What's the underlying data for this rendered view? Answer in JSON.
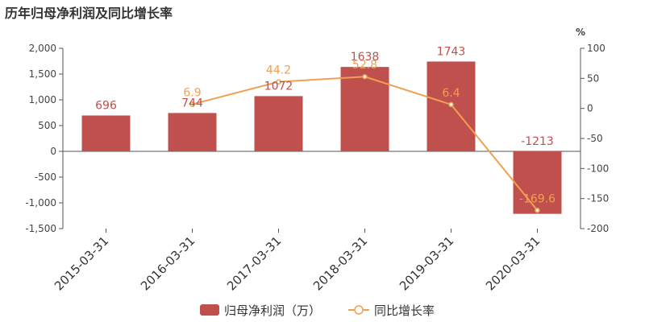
{
  "chart_data": {
    "type": "bar",
    "title": "历年归母净利润及同比增长率",
    "categories": [
      "2015-03-31",
      "2016-03-31",
      "2017-03-31",
      "2018-03-31",
      "2019-03-31",
      "2020-03-31"
    ],
    "series": [
      {
        "name": "归母净利润（万）",
        "type": "bar",
        "axis": "left",
        "values": [
          696,
          744,
          1072,
          1638,
          1743,
          -1213
        ],
        "labels": [
          "696",
          "744",
          "1072",
          "1638",
          "1743",
          "-1213"
        ],
        "color": "#c0504d"
      },
      {
        "name": "同比增长率",
        "type": "line",
        "axis": "right",
        "values": [
          null,
          6.9,
          44.2,
          52.8,
          6.4,
          -169.6
        ],
        "labels": [
          "",
          "6.9",
          "44.2",
          "52.8",
          "6.4",
          "-169.6"
        ],
        "color": "#f0a050"
      }
    ],
    "y_left": {
      "ylim": [
        -1500,
        2000
      ],
      "ticks": [
        2000,
        1500,
        1000,
        500,
        0,
        -500,
        -1000,
        -1500
      ],
      "tick_labels": [
        "2,000",
        "1,500",
        "1,000",
        "500",
        "0",
        "-500",
        "-1,000",
        "-1,500"
      ]
    },
    "y_right": {
      "unit": "%",
      "ylim": [
        -200,
        100
      ],
      "ticks": [
        100,
        50,
        0,
        -50,
        -100,
        -150,
        -200
      ],
      "tick_labels": [
        "100",
        "50",
        "0",
        "-50",
        "-100",
        "-150",
        "-200"
      ]
    },
    "grid": false,
    "legend_position": "bottom"
  }
}
